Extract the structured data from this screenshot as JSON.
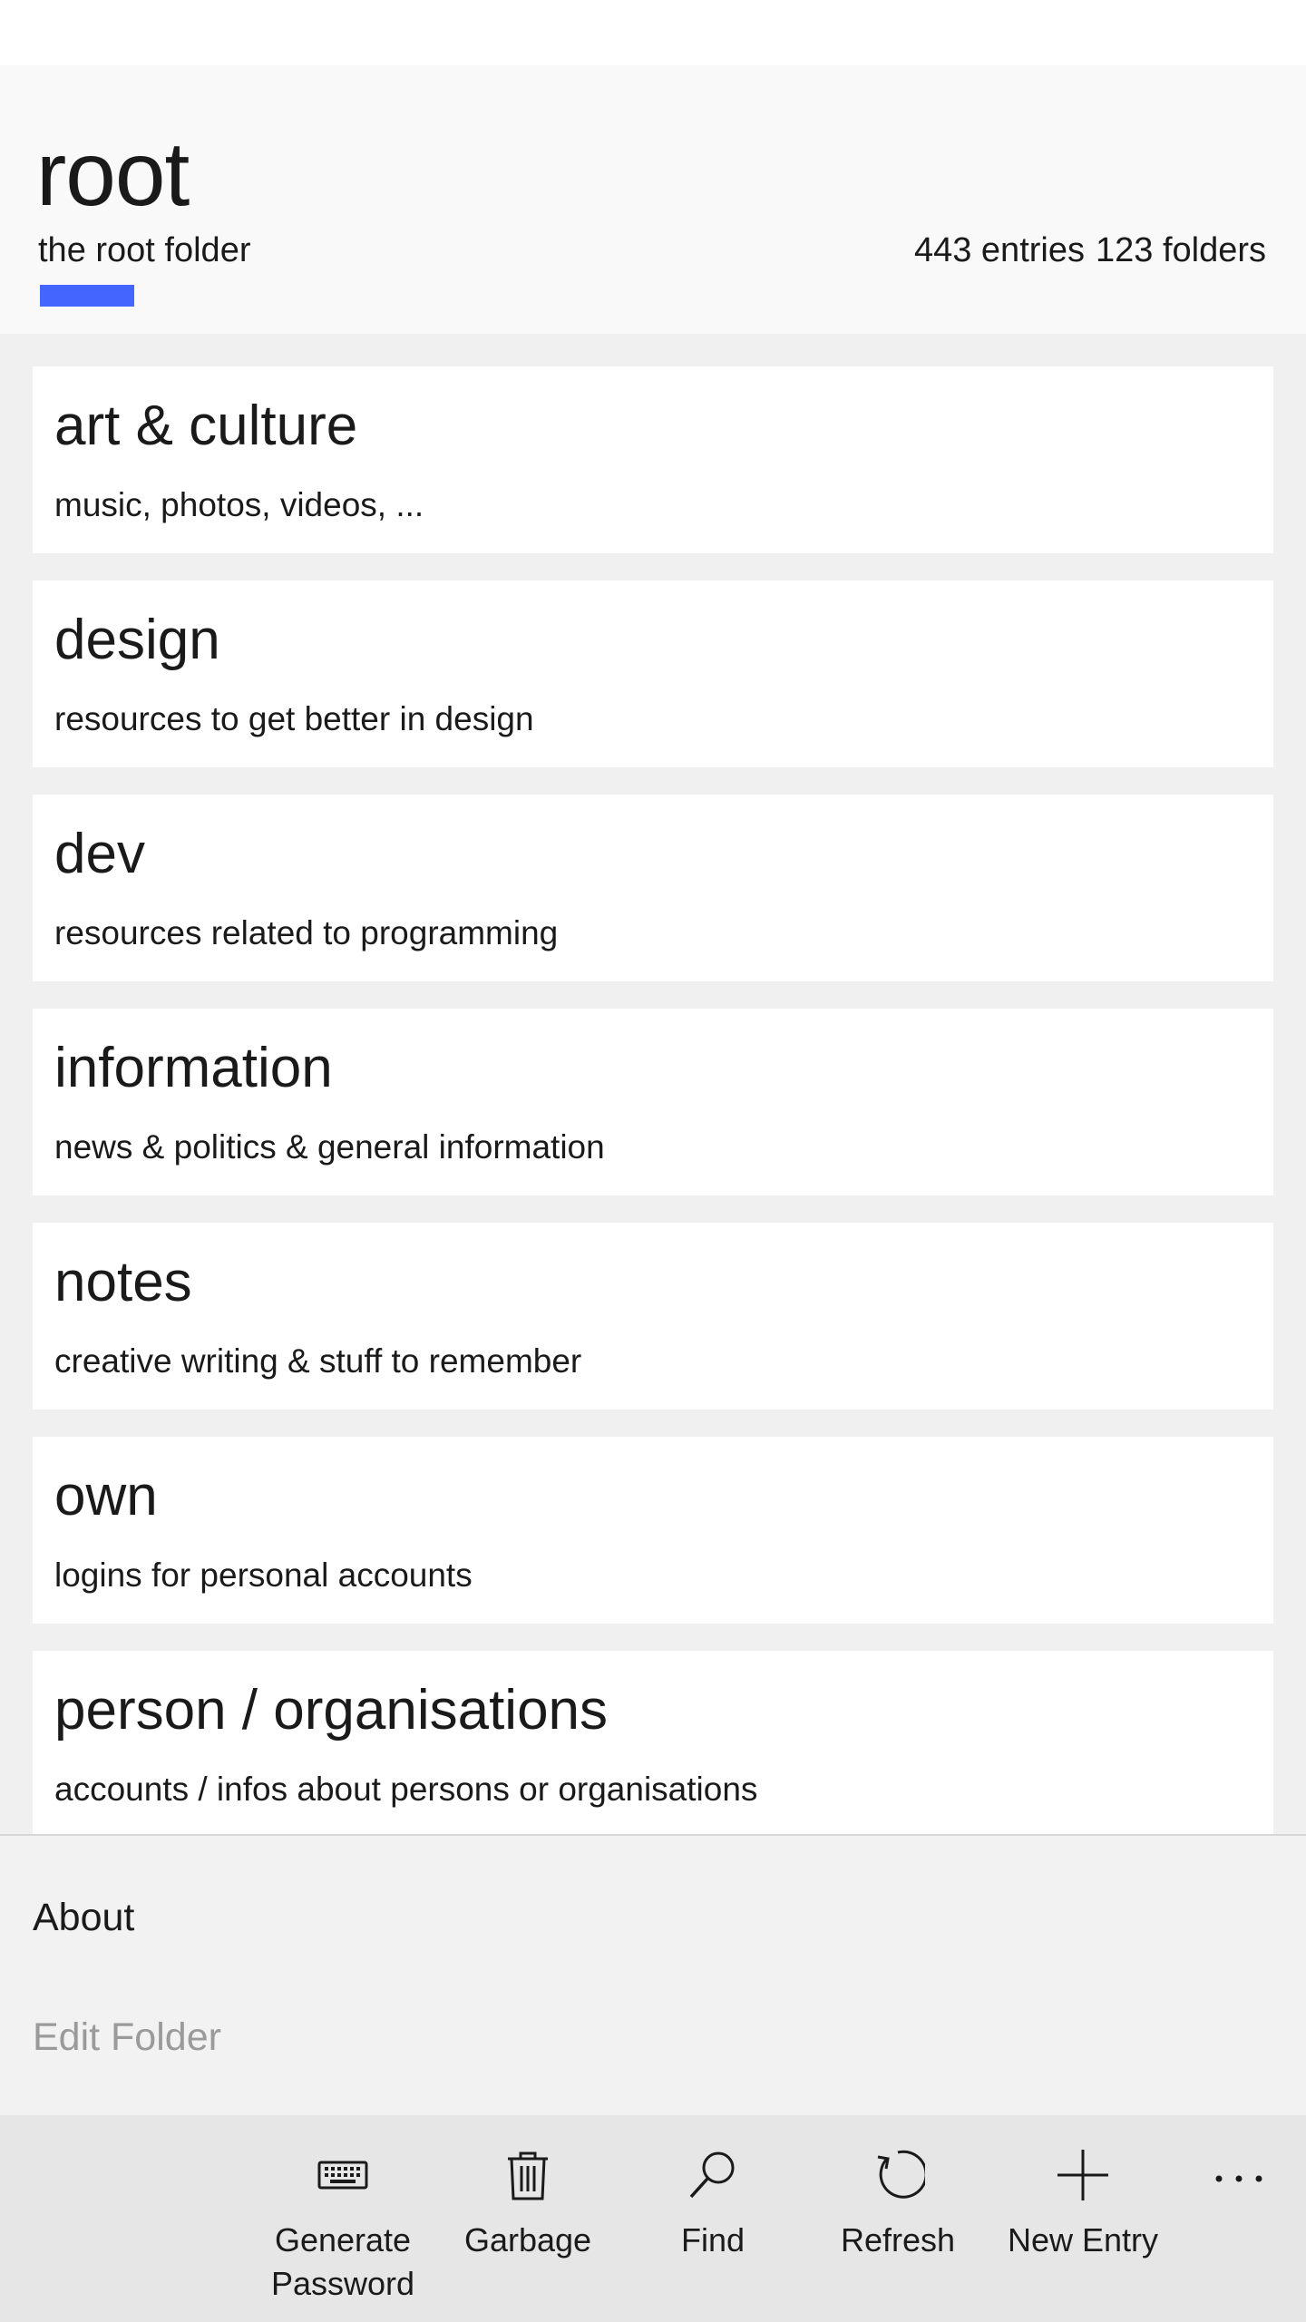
{
  "header": {
    "title": "root",
    "subtitle": "the root folder",
    "entries_count": "443 entries",
    "folders_count": "123 folders",
    "accent_color": "#4466ff"
  },
  "folders": [
    {
      "title": "art & culture",
      "description": "music, photos, videos, ..."
    },
    {
      "title": "design",
      "description": "resources to get better in design"
    },
    {
      "title": "dev",
      "description": "resources related to programming"
    },
    {
      "title": "information",
      "description": "news & politics & general information"
    },
    {
      "title": "notes",
      "description": "creative writing & stuff to remember"
    },
    {
      "title": "own",
      "description": "logins for personal accounts"
    },
    {
      "title": "person / organisations",
      "description": "accounts / infos about persons or organisations"
    }
  ],
  "menu": {
    "about_label": "About",
    "edit_folder_label": "Edit Folder"
  },
  "appbar": {
    "buttons": [
      {
        "label": "Generate Password",
        "icon": "keyboard-icon"
      },
      {
        "label": "Garbage",
        "icon": "trash-icon"
      },
      {
        "label": "Find",
        "icon": "search-icon"
      },
      {
        "label": "Refresh",
        "icon": "refresh-icon"
      },
      {
        "label": "New Entry",
        "icon": "plus-icon"
      }
    ],
    "more_icon": "more-icon"
  }
}
